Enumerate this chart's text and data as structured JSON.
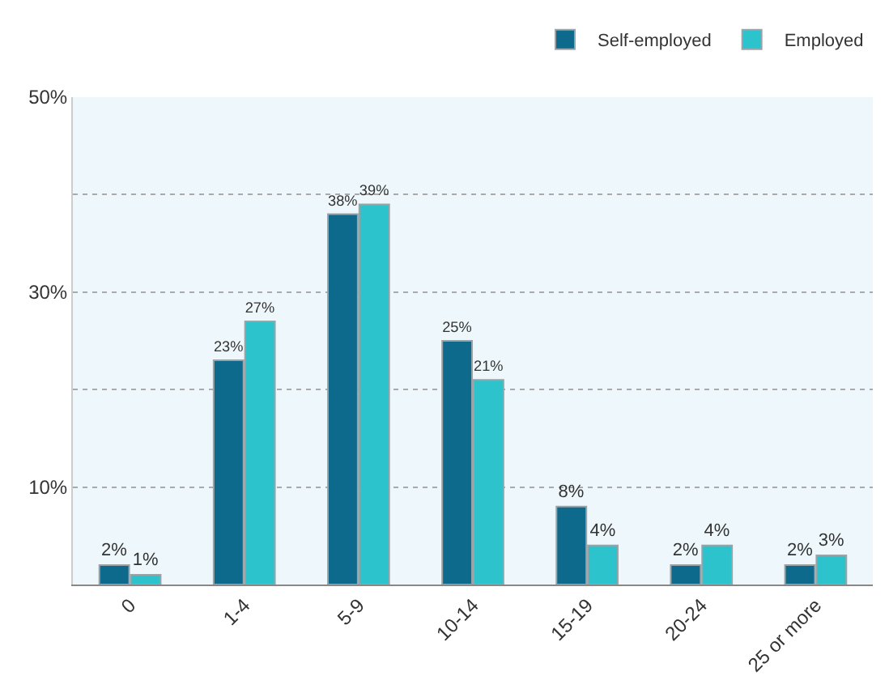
{
  "chart_data": {
    "type": "bar",
    "categories": [
      "0",
      "1-4",
      "5-9",
      "10-14",
      "15-19",
      "20-24",
      "25 or more"
    ],
    "series": [
      {
        "name": "Self-employed",
        "color": "#0e6a8c",
        "values": [
          2,
          23,
          38,
          25,
          8,
          2,
          2
        ],
        "value_labels": [
          "2%",
          "23%",
          "38%",
          "25%",
          "8%",
          "2%",
          "2%"
        ]
      },
      {
        "name": "Employed",
        "color": "#2cc3cc",
        "values": [
          1,
          27,
          39,
          21,
          4,
          4,
          3
        ],
        "value_labels": [
          "1%",
          "27%",
          "39%",
          "21%",
          "4%",
          "4%",
          "3%"
        ]
      }
    ],
    "ylim": [
      0,
      50
    ],
    "yticks": [
      {
        "value": 10,
        "label": "10%"
      },
      {
        "value": 20,
        "label": null
      },
      {
        "value": 30,
        "label": "30%"
      },
      {
        "value": 40,
        "label": null
      },
      {
        "value": 50,
        "label": "50%"
      }
    ],
    "grid": "y",
    "legend": "top right"
  }
}
